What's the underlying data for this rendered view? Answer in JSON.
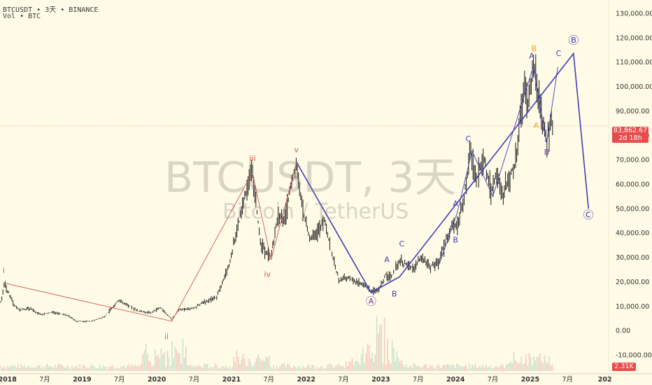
{
  "header": {
    "line1": "BTCUSDT • 3天 • BINANCE",
    "line2": "Vol • BTC"
  },
  "watermark": {
    "symbol": "BTCUSDT, 3天",
    "name": "Bitcoin / TetherUS"
  },
  "price_tag": {
    "price": "83,862.67",
    "countdown": "2d 18h"
  },
  "volume_tag": "2.31K",
  "colors": {
    "background": "#fffbe6",
    "candle": "#1a1a1a",
    "wave_red": "#d9534f",
    "wave_blue": "#3f3fb5",
    "wave_orange": "#f0a020",
    "wave_purple": "#7a3da8",
    "last_price": "#e84b4b"
  },
  "chart_data": {
    "type": "line",
    "title": "BTCUSDT, 3天",
    "subtitle": "Bitcoin / TetherUS",
    "x_labels": [
      "2018",
      "7月",
      "2019",
      "7月",
      "2020",
      "7月",
      "2021",
      "7月",
      "2022",
      "7月",
      "2023",
      "7月",
      "2024",
      "7月",
      "2025",
      "7月",
      "202"
    ],
    "y_ticks": [
      "130,000.00",
      "120,000.00",
      "110,000.00",
      "100,000.00",
      "90,000.00",
      "80,000.00",
      "70,000.00",
      "60,000.00",
      "50,000.00",
      "40,000.00",
      "30,000.00",
      "20,000.00",
      "10,000.00",
      "0.00",
      "-10,000.00"
    ],
    "ylim": [
      -12000,
      132000
    ],
    "last_price": 83862.67,
    "price_series": [
      {
        "t": 2017.9,
        "v": 10000
      },
      {
        "t": 2017.96,
        "v": 19000
      },
      {
        "t": 2018.08,
        "v": 11000
      },
      {
        "t": 2018.15,
        "v": 8500
      },
      {
        "t": 2018.3,
        "v": 9000
      },
      {
        "t": 2018.45,
        "v": 6500
      },
      {
        "t": 2018.6,
        "v": 7500
      },
      {
        "t": 2018.8,
        "v": 6300
      },
      {
        "t": 2018.92,
        "v": 3800
      },
      {
        "t": 2019.1,
        "v": 3700
      },
      {
        "t": 2019.3,
        "v": 5500
      },
      {
        "t": 2019.48,
        "v": 12500
      },
      {
        "t": 2019.6,
        "v": 10500
      },
      {
        "t": 2019.75,
        "v": 8000
      },
      {
        "t": 2019.92,
        "v": 7200
      },
      {
        "t": 2020.05,
        "v": 9500
      },
      {
        "t": 2020.2,
        "v": 4500
      },
      {
        "t": 2020.3,
        "v": 8500
      },
      {
        "t": 2020.5,
        "v": 9200
      },
      {
        "t": 2020.62,
        "v": 11500
      },
      {
        "t": 2020.8,
        "v": 13500
      },
      {
        "t": 2020.95,
        "v": 25000
      },
      {
        "t": 2021.05,
        "v": 38000
      },
      {
        "t": 2021.12,
        "v": 47000
      },
      {
        "t": 2021.18,
        "v": 56000
      },
      {
        "t": 2021.28,
        "v": 64500
      },
      {
        "t": 2021.38,
        "v": 38000
      },
      {
        "t": 2021.45,
        "v": 32000
      },
      {
        "t": 2021.53,
        "v": 30000
      },
      {
        "t": 2021.62,
        "v": 47000
      },
      {
        "t": 2021.72,
        "v": 45000
      },
      {
        "t": 2021.8,
        "v": 60000
      },
      {
        "t": 2021.87,
        "v": 68500
      },
      {
        "t": 2021.95,
        "v": 49000
      },
      {
        "t": 2022.05,
        "v": 38000
      },
      {
        "t": 2022.15,
        "v": 40000
      },
      {
        "t": 2022.25,
        "v": 45000
      },
      {
        "t": 2022.35,
        "v": 30000
      },
      {
        "t": 2022.45,
        "v": 20000
      },
      {
        "t": 2022.55,
        "v": 22000
      },
      {
        "t": 2022.65,
        "v": 20000
      },
      {
        "t": 2022.75,
        "v": 19500
      },
      {
        "t": 2022.87,
        "v": 15800
      },
      {
        "t": 2022.97,
        "v": 16800
      },
      {
        "t": 2023.07,
        "v": 23000
      },
      {
        "t": 2023.15,
        "v": 22500
      },
      {
        "t": 2023.25,
        "v": 28000
      },
      {
        "t": 2023.35,
        "v": 27000
      },
      {
        "t": 2023.45,
        "v": 25500
      },
      {
        "t": 2023.53,
        "v": 30500
      },
      {
        "t": 2023.65,
        "v": 26000
      },
      {
        "t": 2023.78,
        "v": 28000
      },
      {
        "t": 2023.87,
        "v": 37000
      },
      {
        "t": 2023.95,
        "v": 43000
      },
      {
        "t": 2024.02,
        "v": 42000
      },
      {
        "t": 2024.1,
        "v": 52000
      },
      {
        "t": 2024.2,
        "v": 73000
      },
      {
        "t": 2024.28,
        "v": 62000
      },
      {
        "t": 2024.38,
        "v": 70000
      },
      {
        "t": 2024.48,
        "v": 57000
      },
      {
        "t": 2024.55,
        "v": 66000
      },
      {
        "t": 2024.62,
        "v": 54000
      },
      {
        "t": 2024.72,
        "v": 63000
      },
      {
        "t": 2024.8,
        "v": 68000
      },
      {
        "t": 2024.87,
        "v": 90000
      },
      {
        "t": 2024.93,
        "v": 99000
      },
      {
        "t": 2024.98,
        "v": 93000
      },
      {
        "t": 2025.05,
        "v": 108000
      },
      {
        "t": 2025.12,
        "v": 96000
      },
      {
        "t": 2025.18,
        "v": 82000
      },
      {
        "t": 2025.22,
        "v": 77000
      },
      {
        "t": 2025.27,
        "v": 86000
      },
      {
        "t": 2025.3,
        "v": 83862
      }
    ],
    "wave_lines": [
      {
        "name": "primary-red",
        "color": "#d9534f",
        "points": [
          {
            "t": 2017.95,
            "v": 19500
          },
          {
            "t": 2020.2,
            "v": 3800
          },
          {
            "t": 2021.28,
            "v": 64800
          },
          {
            "t": 2021.53,
            "v": 29000
          },
          {
            "t": 2021.87,
            "v": 69000
          }
        ]
      },
      {
        "name": "corrective-blue",
        "color": "#3f3fb5",
        "points": [
          {
            "t": 2021.87,
            "v": 69000
          },
          {
            "t": 2022.87,
            "v": 15500
          },
          {
            "t": 2023.25,
            "v": 22000
          },
          {
            "t": 2025.58,
            "v": 113500
          },
          {
            "t": 2025.78,
            "v": 50000
          }
        ]
      },
      {
        "name": "minor-blue",
        "color": "#3f3fb5",
        "points": [
          {
            "t": 2023.78,
            "v": 27000
          },
          {
            "t": 2024.02,
            "v": 48000
          },
          {
            "t": 2024.22,
            "v": 73500
          },
          {
            "t": 2024.5,
            "v": 55000
          },
          {
            "t": 2025.04,
            "v": 108000
          },
          {
            "t": 2025.22,
            "v": 77000
          },
          {
            "t": 2025.37,
            "v": 108000
          }
        ]
      }
    ],
    "wave_labels": [
      {
        "text": "i",
        "t": 2017.95,
        "v": 23500,
        "color": "#d9534f"
      },
      {
        "text": "ii",
        "t": 2020.13,
        "v": -3500,
        "color": "#d9534f"
      },
      {
        "text": "iii",
        "t": 2021.28,
        "v": 69500,
        "color": "#d9534f"
      },
      {
        "text": "iv",
        "t": 2021.48,
        "v": 22000,
        "color": "#d9534f"
      },
      {
        "text": "v",
        "t": 2021.87,
        "v": 73000,
        "color": "#d9534f"
      },
      {
        "text": "Ⓐ",
        "t": 2022.87,
        "v": 10500,
        "color": "#7a3da8"
      },
      {
        "text": "A",
        "t": 2023.08,
        "v": 28000,
        "color": "#3f3fb5"
      },
      {
        "text": "B",
        "t": 2023.18,
        "v": 14000,
        "color": "#3f3fb5"
      },
      {
        "text": "C",
        "t": 2023.28,
        "v": 34500,
        "color": "#3f3fb5"
      },
      {
        "text": "A",
        "t": 2024.0,
        "v": 51000,
        "color": "#3f3fb5"
      },
      {
        "text": "B",
        "t": 2024.0,
        "v": 36000,
        "color": "#3f3fb5"
      },
      {
        "text": "C",
        "t": 2024.17,
        "v": 77500,
        "color": "#3f3fb5"
      },
      {
        "text": "A",
        "t": 2025.02,
        "v": 111500,
        "color": "#3f3fb5"
      },
      {
        "text": "B",
        "t": 2025.05,
        "v": 114500,
        "color": "#f0a020"
      },
      {
        "text": "A",
        "t": 2025.08,
        "v": 83000,
        "color": "#f0a020"
      },
      {
        "text": "B",
        "t": 2025.22,
        "v": 72000,
        "color": "#7a3da8"
      },
      {
        "text": "C",
        "t": 2025.38,
        "v": 112500,
        "color": "#3f3fb5"
      },
      {
        "text": "Ⓑ",
        "t": 2025.58,
        "v": 117500,
        "color": "#3f3fb5"
      },
      {
        "text": "Ⓒ",
        "t": 2025.78,
        "v": 46000,
        "color": "#3f3fb5"
      }
    ]
  }
}
